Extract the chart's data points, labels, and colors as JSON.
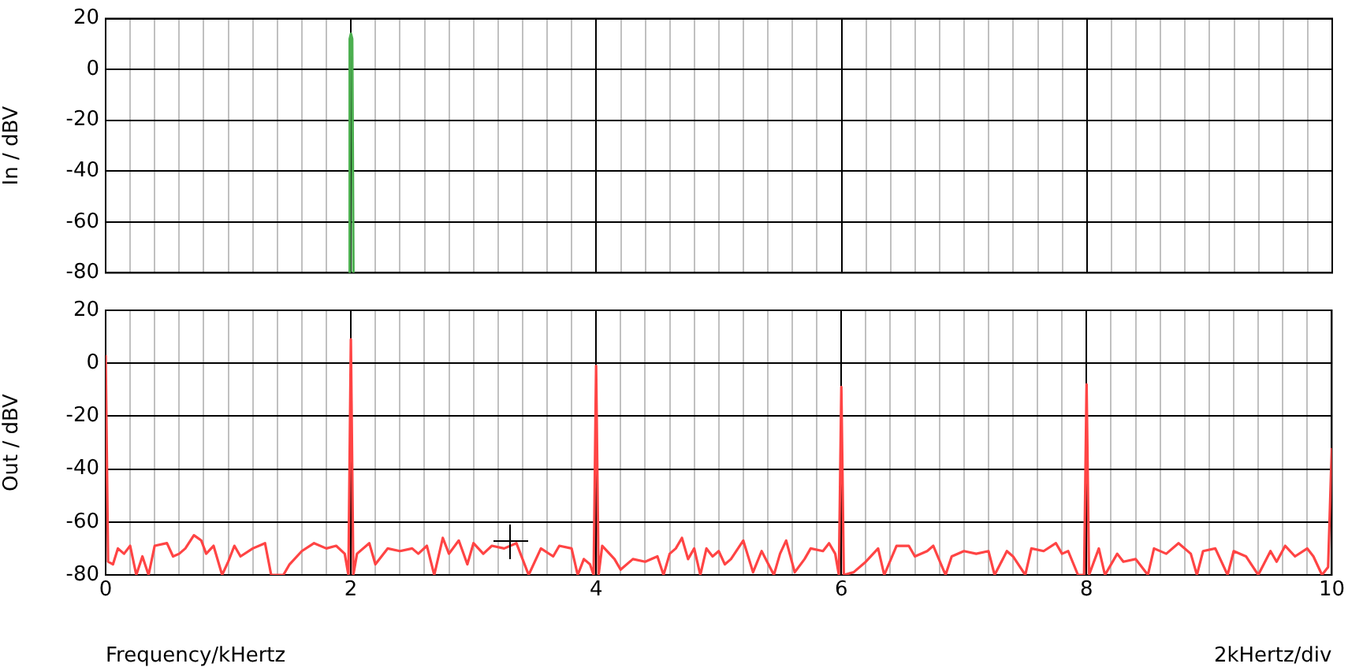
{
  "chart_data": [
    {
      "type": "line",
      "ylabel": "In / dBV",
      "xlim": [
        0,
        10
      ],
      "ylim": [
        -80,
        20
      ],
      "yticks": [
        -80,
        -60,
        -40,
        -20,
        0,
        20
      ],
      "xticks": [
        0,
        {
          "value": 0.2,
          "label": null
        },
        {
          "value": 0.4,
          "label": null
        },
        {
          "value": 0.6,
          "label": null
        },
        {
          "value": 0.8,
          "label": null
        },
        {
          "value": 1,
          "label": null
        },
        {
          "value": 1.2,
          "label": null
        },
        {
          "value": 1.4,
          "label": null
        },
        {
          "value": 1.6,
          "label": null
        },
        {
          "value": 1.8,
          "label": null
        },
        2,
        {
          "value": 2.2,
          "label": null
        },
        {
          "value": 2.4,
          "label": null
        },
        {
          "value": 2.6,
          "label": null
        },
        {
          "value": 2.8,
          "label": null
        },
        {
          "value": 3,
          "label": null
        },
        {
          "value": 3.2,
          "label": null
        },
        {
          "value": 3.4,
          "label": null
        },
        {
          "value": 3.6,
          "label": null
        },
        {
          "value": 3.8,
          "label": null
        },
        4,
        {
          "value": 4.2,
          "label": null
        },
        {
          "value": 4.4,
          "label": null
        },
        {
          "value": 4.6,
          "label": null
        },
        {
          "value": 4.8,
          "label": null
        },
        {
          "value": 5,
          "label": null
        },
        {
          "value": 5.2,
          "label": null
        },
        {
          "value": 5.4,
          "label": null
        },
        {
          "value": 5.6,
          "label": null
        },
        {
          "value": 5.8,
          "label": null
        },
        6,
        {
          "value": 6.2,
          "label": null
        },
        {
          "value": 6.4,
          "label": null
        },
        {
          "value": 6.6,
          "label": null
        },
        {
          "value": 6.8,
          "label": null
        },
        {
          "value": 7,
          "label": null
        },
        {
          "value": 7.2,
          "label": null
        },
        {
          "value": 7.4,
          "label": null
        },
        {
          "value": 7.6,
          "label": null
        },
        {
          "value": 7.8,
          "label": null
        },
        8,
        {
          "value": 8.2,
          "label": null
        },
        {
          "value": 8.4,
          "label": null
        },
        {
          "value": 8.6,
          "label": null
        },
        {
          "value": 8.8,
          "label": null
        },
        {
          "value": 9,
          "label": null
        },
        {
          "value": 9.2,
          "label": null
        },
        {
          "value": 9.4,
          "label": null
        },
        {
          "value": 9.6,
          "label": null
        },
        {
          "value": 9.8,
          "label": null
        },
        10
      ],
      "grid": true,
      "tick_labels": "y",
      "series": [
        {
          "color": "#4caf50",
          "x": [
            1.98,
            1.99,
            2.0,
            2.01,
            2.02
          ],
          "values": [
            -80,
            12,
            14,
            12,
            -80
          ]
        }
      ]
    },
    {
      "type": "line",
      "ylabel": "Out / dBV",
      "xlim": [
        0,
        10
      ],
      "ylim": [
        -80,
        20
      ],
      "yticks": [
        -80,
        -60,
        -40,
        -20,
        0,
        20
      ],
      "xticks": [
        0,
        {
          "value": 0.2,
          "label": null
        },
        {
          "value": 0.4,
          "label": null
        },
        {
          "value": 0.6,
          "label": null
        },
        {
          "value": 0.8,
          "label": null
        },
        {
          "value": 1,
          "label": null
        },
        {
          "value": 1.2,
          "label": null
        },
        {
          "value": 1.4,
          "label": null
        },
        {
          "value": 1.6,
          "label": null
        },
        {
          "value": 1.8,
          "label": null
        },
        2,
        {
          "value": 2.2,
          "label": null
        },
        {
          "value": 2.4,
          "label": null
        },
        {
          "value": 2.6,
          "label": null
        },
        {
          "value": 2.8,
          "label": null
        },
        {
          "value": 3,
          "label": null
        },
        {
          "value": 3.2,
          "label": null
        },
        {
          "value": 3.4,
          "label": null
        },
        {
          "value": 3.6,
          "label": null
        },
        {
          "value": 3.8,
          "label": null
        },
        4,
        {
          "value": 4.2,
          "label": null
        },
        {
          "value": 4.4,
          "label": null
        },
        {
          "value": 4.6,
          "label": null
        },
        {
          "value": 4.8,
          "label": null
        },
        {
          "value": 5,
          "label": null
        },
        {
          "value": 5.2,
          "label": null
        },
        {
          "value": 5.4,
          "label": null
        },
        {
          "value": 5.6,
          "label": null
        },
        {
          "value": 5.8,
          "label": null
        },
        6,
        {
          "value": 6.2,
          "label": null
        },
        {
          "value": 6.4,
          "label": null
        },
        {
          "value": 6.6,
          "label": null
        },
        {
          "value": 6.8,
          "label": null
        },
        {
          "value": 7,
          "label": null
        },
        {
          "value": 7.2,
          "label": null
        },
        {
          "value": 7.4,
          "label": null
        },
        {
          "value": 7.6,
          "label": null
        },
        {
          "value": 7.8,
          "label": null
        },
        8,
        {
          "value": 8.2,
          "label": null
        },
        {
          "value": 8.4,
          "label": null
        },
        {
          "value": 8.6,
          "label": null
        },
        {
          "value": 8.8,
          "label": null
        },
        {
          "value": 9,
          "label": null
        },
        {
          "value": 9.2,
          "label": null
        },
        {
          "value": 9.4,
          "label": null
        },
        {
          "value": 9.6,
          "label": null
        },
        {
          "value": 9.8,
          "label": null
        },
        10
      ],
      "grid": true,
      "annotations": [
        "Frequency/kHertz",
        "2kHertz/div"
      ],
      "series": [
        {
          "color": "#ff4444",
          "x": [
            0,
            0.02,
            0.06,
            0.1,
            0.15,
            0.2,
            0.25,
            0.3,
            0.35,
            0.4,
            0.5,
            0.55,
            0.6,
            0.65,
            0.72,
            0.78,
            0.82,
            0.88,
            0.95,
            1.0,
            1.05,
            1.1,
            1.2,
            1.3,
            1.35,
            1.45,
            1.5,
            1.6,
            1.7,
            1.8,
            1.88,
            1.95,
            1.98,
            2.0,
            2.02,
            2.05,
            2.15,
            2.2,
            2.3,
            2.4,
            2.5,
            2.55,
            2.62,
            2.68,
            2.75,
            2.8,
            2.88,
            2.95,
            3.0,
            3.08,
            3.15,
            3.25,
            3.35,
            3.45,
            3.55,
            3.65,
            3.7,
            3.8,
            3.85,
            3.9,
            3.95,
            3.98,
            4.0,
            4.02,
            4.05,
            4.15,
            4.2,
            4.3,
            4.4,
            4.5,
            4.55,
            4.6,
            4.65,
            4.7,
            4.75,
            4.8,
            4.85,
            4.9,
            4.95,
            5.0,
            5.05,
            5.1,
            5.2,
            5.28,
            5.35,
            5.45,
            5.5,
            5.55,
            5.62,
            5.7,
            5.75,
            5.85,
            5.9,
            5.95,
            5.98,
            6.0,
            6.02,
            6.1,
            6.2,
            6.3,
            6.35,
            6.45,
            6.55,
            6.6,
            6.7,
            6.75,
            6.85,
            6.9,
            7.0,
            7.1,
            7.2,
            7.25,
            7.35,
            7.4,
            7.5,
            7.55,
            7.65,
            7.75,
            7.8,
            7.85,
            7.93,
            7.98,
            8.0,
            8.02,
            8.1,
            8.15,
            8.25,
            8.3,
            8.4,
            8.5,
            8.55,
            8.65,
            8.75,
            8.85,
            8.9,
            8.95,
            9.05,
            9.15,
            9.2,
            9.3,
            9.4,
            9.5,
            9.55,
            9.62,
            9.7,
            9.8,
            9.85,
            9.92,
            9.97,
            10.0
          ],
          "values": [
            3,
            -75,
            -76,
            -70,
            -72,
            -69,
            -80,
            -73,
            -80,
            -69,
            -68,
            -73,
            -72,
            -70,
            -65,
            -67,
            -72,
            -69,
            -80,
            -75,
            -69,
            -73,
            -70,
            -68,
            -80,
            -80,
            -76,
            -71,
            -68,
            -70,
            -69,
            -72,
            -80,
            9,
            -80,
            -72,
            -68,
            -76,
            -70,
            -71,
            -70,
            -72,
            -69,
            -80,
            -66,
            -72,
            -67,
            -76,
            -68,
            -72,
            -69,
            -70,
            -68,
            -80,
            -70,
            -73,
            -69,
            -70,
            -80,
            -74,
            -76,
            -80,
            -1,
            -80,
            -69,
            -74,
            -78,
            -74,
            -75,
            -73,
            -80,
            -72,
            -70,
            -66,
            -74,
            -70,
            -80,
            -70,
            -73,
            -71,
            -76,
            -74,
            -67,
            -79,
            -71,
            -80,
            -72,
            -67,
            -79,
            -74,
            -70,
            -71,
            -68,
            -72,
            -80,
            -9,
            -80,
            -79,
            -75,
            -70,
            -80,
            -69,
            -69,
            -73,
            -71,
            -69,
            -80,
            -73,
            -71,
            -72,
            -71,
            -80,
            -71,
            -73,
            -80,
            -70,
            -71,
            -68,
            -72,
            -71,
            -80,
            -80,
            -8,
            -80,
            -70,
            -80,
            -72,
            -75,
            -74,
            -80,
            -70,
            -72,
            -68,
            -72,
            -80,
            -71,
            -70,
            -80,
            -71,
            -73,
            -80,
            -71,
            -75,
            -69,
            -73,
            -70,
            -73,
            -80,
            -77,
            -32
          ]
        }
      ]
    }
  ]
}
